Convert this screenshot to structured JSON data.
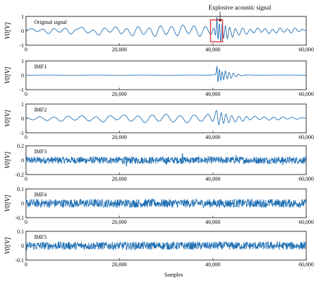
{
  "chart_data": {
    "type": "line",
    "xlabel": "Samples",
    "annotation": "Explosive acoustic signal",
    "line_color": "#1f6fb4",
    "box_color": "#e0262a",
    "xlim": [
      0,
      60000
    ],
    "x_ticks": [
      "0",
      "20,000",
      "40,000",
      "60,000"
    ],
    "highlight_range": [
      39800,
      41800
    ],
    "panels": [
      {
        "label": "Original signal",
        "ylabel": "V0[V]",
        "ylim": [
          -1,
          1
        ],
        "y_ticks": [
          "1",
          "0",
          "-1"
        ],
        "x_tick_values": [
          0,
          20000,
          40000,
          60000
        ],
        "series": [
          [
            0,
            0.05
          ],
          [
            1200,
            0.15
          ],
          [
            2400,
            -0.05
          ],
          [
            3600,
            0.12
          ],
          [
            4800,
            -0.2
          ],
          [
            6000,
            0.15
          ],
          [
            7200,
            -0.1
          ],
          [
            8400,
            0.18
          ],
          [
            9600,
            -0.22
          ],
          [
            10800,
            0.1
          ],
          [
            12000,
            0.25
          ],
          [
            13200,
            -0.15
          ],
          [
            14400,
            0.05
          ],
          [
            15600,
            -0.3
          ],
          [
            16800,
            0.2
          ],
          [
            18000,
            -0.1
          ],
          [
            19200,
            0.28
          ],
          [
            20400,
            -0.2
          ],
          [
            21600,
            0.15
          ],
          [
            22800,
            -0.35
          ],
          [
            24000,
            0.3
          ],
          [
            25200,
            -0.25
          ],
          [
            26400,
            0.2
          ],
          [
            27600,
            -0.4
          ],
          [
            28800,
            0.35
          ],
          [
            30000,
            -0.25
          ],
          [
            31200,
            0.3
          ],
          [
            32400,
            -0.35
          ],
          [
            33600,
            0.4
          ],
          [
            34800,
            -0.2
          ],
          [
            36000,
            0.35
          ],
          [
            37200,
            -0.4
          ],
          [
            38400,
            0.3
          ],
          [
            39600,
            -0.25
          ],
          [
            40200,
            0.2
          ],
          [
            40600,
            -0.3
          ],
          [
            40900,
            0.95
          ],
          [
            41100,
            -0.6
          ],
          [
            41400,
            0.5
          ],
          [
            41700,
            -0.75
          ],
          [
            42000,
            0.45
          ],
          [
            42300,
            -0.5
          ],
          [
            42700,
            0.35
          ],
          [
            43100,
            -0.55
          ],
          [
            43600,
            0.25
          ],
          [
            44200,
            -0.45
          ],
          [
            44800,
            0.15
          ],
          [
            45600,
            -0.3
          ],
          [
            46400,
            0.2
          ],
          [
            47200,
            -0.25
          ],
          [
            48000,
            0.1
          ],
          [
            48800,
            -0.15
          ],
          [
            49600,
            0.2
          ],
          [
            50400,
            -0.1
          ],
          [
            51200,
            0.15
          ],
          [
            52000,
            -0.2
          ],
          [
            52800,
            0.1
          ],
          [
            53600,
            -0.15
          ],
          [
            54400,
            0.2
          ],
          [
            55200,
            -0.1
          ],
          [
            56000,
            0.12
          ],
          [
            56800,
            -0.15
          ],
          [
            57600,
            0.2
          ],
          [
            58400,
            -0.05
          ],
          [
            59200,
            0.1
          ],
          [
            60000,
            0
          ]
        ]
      },
      {
        "label": "IMF1",
        "ylabel": "V0[V]",
        "ylim": [
          -1,
          1
        ],
        "y_ticks": [
          "1",
          "0",
          "-1"
        ],
        "x_tick_values": [
          0,
          20000,
          40000,
          60000
        ],
        "series": [
          [
            0,
            0
          ],
          [
            5000,
            0.01
          ],
          [
            10000,
            -0.01
          ],
          [
            15000,
            0.01
          ],
          [
            20000,
            -0.01
          ],
          [
            25000,
            0.01
          ],
          [
            30000,
            -0.01
          ],
          [
            35000,
            0.01
          ],
          [
            39500,
            0
          ],
          [
            40600,
            0.05
          ],
          [
            40900,
            0.6
          ],
          [
            41100,
            -0.45
          ],
          [
            41400,
            0.4
          ],
          [
            41700,
            -0.35
          ],
          [
            42000,
            0.25
          ],
          [
            42300,
            -0.3
          ],
          [
            42700,
            0.3
          ],
          [
            43100,
            -0.25
          ],
          [
            43500,
            0.2
          ],
          [
            43900,
            -0.2
          ],
          [
            44400,
            0.15
          ],
          [
            44900,
            -0.1
          ],
          [
            45500,
            0.08
          ],
          [
            46200,
            -0.04
          ],
          [
            47000,
            0.02
          ],
          [
            50000,
            0
          ],
          [
            55000,
            0.01
          ],
          [
            60000,
            0
          ]
        ]
      },
      {
        "label": "IMF2",
        "ylabel": "V0[V]",
        "ylim": [
          -1,
          1
        ],
        "y_ticks": [
          "1",
          "0",
          "-1"
        ],
        "x_tick_values": [
          0,
          20000,
          40000,
          60000
        ],
        "series": [
          [
            0,
            0.05
          ],
          [
            1500,
            -0.1
          ],
          [
            3000,
            0.12
          ],
          [
            4500,
            -0.15
          ],
          [
            6000,
            0.1
          ],
          [
            7500,
            -0.2
          ],
          [
            9000,
            0.15
          ],
          [
            10500,
            -0.12
          ],
          [
            12000,
            0.2
          ],
          [
            13500,
            -0.18
          ],
          [
            15000,
            0.12
          ],
          [
            16500,
            -0.25
          ],
          [
            18000,
            0.2
          ],
          [
            19500,
            -0.1
          ],
          [
            21000,
            0.25
          ],
          [
            22500,
            -0.2
          ],
          [
            24000,
            0.18
          ],
          [
            25500,
            -0.3
          ],
          [
            27000,
            0.25
          ],
          [
            28500,
            -0.2
          ],
          [
            30000,
            0.3
          ],
          [
            31500,
            -0.25
          ],
          [
            33000,
            0.2
          ],
          [
            34500,
            -0.3
          ],
          [
            36000,
            0.25
          ],
          [
            37500,
            -0.2
          ],
          [
            39000,
            0.3
          ],
          [
            40000,
            -0.2
          ],
          [
            40800,
            0.55
          ],
          [
            41300,
            -0.45
          ],
          [
            41800,
            0.4
          ],
          [
            42300,
            -0.35
          ],
          [
            42800,
            0.3
          ],
          [
            43400,
            -0.3
          ],
          [
            44000,
            0.2
          ],
          [
            44800,
            -0.25
          ],
          [
            45600,
            0.15
          ],
          [
            46400,
            -0.2
          ],
          [
            47200,
            0.12
          ],
          [
            48000,
            -0.1
          ],
          [
            49000,
            0.15
          ],
          [
            50000,
            -0.08
          ],
          [
            51000,
            0.1
          ],
          [
            52000,
            -0.12
          ],
          [
            53000,
            0.08
          ],
          [
            54000,
            -0.1
          ],
          [
            55000,
            0.1
          ],
          [
            56000,
            -0.05
          ],
          [
            57000,
            0.08
          ],
          [
            58000,
            -0.06
          ],
          [
            59000,
            0.05
          ],
          [
            60000,
            0
          ]
        ]
      },
      {
        "label": "IMF3",
        "ylabel": "V0[V]",
        "ylim": [
          -0.2,
          0.2
        ],
        "y_ticks": [
          "0.2",
          "0",
          "-0.2"
        ],
        "x_tick_values": [
          0,
          20000,
          40000,
          60000
        ],
        "noise_amplitude": 0.05,
        "spikes": [
          [
            21500,
            -0.08
          ],
          [
            30000,
            -0.06
          ],
          [
            33500,
            0.09
          ],
          [
            45000,
            0.07
          ],
          [
            55000,
            -0.07
          ]
        ]
      },
      {
        "label": "IMF4",
        "ylabel": "V0[V]",
        "ylim": [
          -0.1,
          0.1
        ],
        "y_ticks": [
          "0.1",
          "0",
          "-0.1"
        ],
        "x_tick_values": [
          0,
          20000,
          40000,
          60000
        ],
        "noise_amplitude": 0.03,
        "spikes": []
      },
      {
        "label": "IMF5",
        "ylabel": "V0[V]",
        "ylim": [
          -0.1,
          0.1
        ],
        "y_ticks": [
          "0.1",
          "0",
          "-0.1"
        ],
        "x_tick_values": [
          0,
          20000,
          40000,
          60000
        ],
        "noise_amplitude": 0.028,
        "spikes": []
      }
    ]
  }
}
